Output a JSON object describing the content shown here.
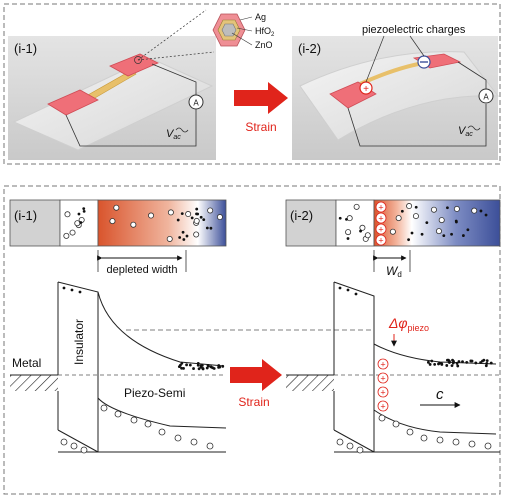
{
  "top": {
    "panel_left_label": "(i-1)",
    "panel_right_label": "(i-2)",
    "inset_materials": [
      "Ag",
      "HfO",
      "ZnO"
    ],
    "inset_hfo_sub": "2",
    "callout": "piezoelectric charges",
    "v_symbol": "V",
    "v_sub": "ac",
    "ammeter": "A",
    "arrow_label": "Strain"
  },
  "bottom": {
    "panel_left_label": "(i-1)",
    "panel_right_label": "(i-2)",
    "depleted_label": "depleted width",
    "wd_symbol": "W",
    "wd_sub": "d",
    "insulator": "Insulator",
    "metal": "Metal",
    "piezo_semi": "Piezo-Semi",
    "arrow_label": "Strain",
    "delta_phi": "Δφ",
    "delta_phi_sub": "piezo",
    "c_symbol": "c",
    "plus": "+"
  },
  "colors": {
    "accent_red": "#e0241b",
    "depletion_red": "#d9542c",
    "deep_blue": "#3c4f99",
    "gray_block": "#d2d2d2",
    "pad_pink": "#ef6f78"
  }
}
